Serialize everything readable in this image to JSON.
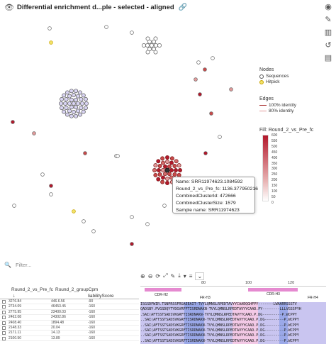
{
  "header": {
    "title": "Differential enrichment d...ple - selected - aligned"
  },
  "icons": {
    "view": "eye-icon",
    "link": "link-icon",
    "rail": [
      "eye-icon",
      "pencil-icon",
      "bar-chart-icon",
      "history-icon",
      "panel-icon"
    ]
  },
  "legend": {
    "nodes_title": "Nodes",
    "nodes": [
      "Sequences",
      "Hitpick"
    ],
    "edges_title": "Edges",
    "edges": [
      "100% identity",
      "80% identity"
    ],
    "fill_title": "Fill: Round_2_vs_Pre_fc",
    "fill_ticks": [
      "600",
      "550",
      "500",
      "450",
      "400",
      "350",
      "300",
      "250",
      "200",
      "150",
      "100",
      "50",
      "0"
    ]
  },
  "tooltip": {
    "name": "Name: SRR11974623.1084592",
    "fc": "Round_2_vs_Pre_fc: 1136.377950216",
    "cluster_id": "CombinedClusterId: 472666",
    "cluster_size": "CombinedClusterSize: 1579",
    "sample": "Sample name: SRR11974623"
  },
  "filter": {
    "placeholder": "Filter..."
  },
  "table": {
    "columns": [
      "Round_2_vs_Pre_fc",
      "Round_2_groupCpm",
      "liabilityScore"
    ],
    "sort_arrow": "↓",
    "rows": [
      [
        "3276.84",
        "446.6.56",
        "-90"
      ],
      [
        "2734.09",
        "46453.45",
        "-160"
      ],
      [
        "2775.95",
        "23400.03",
        "-160"
      ],
      [
        "2462.08",
        "24302.86",
        "-160"
      ],
      [
        "2408.40",
        "1894.48",
        "-160"
      ],
      [
        "2148.33",
        "20.04",
        "-160"
      ],
      [
        "2171.11",
        "14.13",
        "-160"
      ],
      [
        "2100.50",
        "13.89",
        "-160"
      ]
    ]
  },
  "alignment": {
    "ruler": [
      "80",
      "100",
      "120"
    ],
    "regions": [
      "CDR-H2",
      "FR-H3",
      "CDR-H3",
      "FR-H4"
    ],
    "rows": [
      "ISGSDFWIR.TSNPRSSFRGAEEAIT-TVYLQMNSLRPEDTAVYYCAAEQGHFPY-------LWAARRSSSTV",
      "QADSBY.PVGSDQYTYDGVRFFTISRDNAKN-TVYLQMNSLRPEDTAVYYCAAD.PY--------LLLVGSSPYH",
      ".SAI(AFTSSTSADSVKGRFTISRDNAKN-TVYLQMNSLRPEDTAVYYCAAD.P.DG---------P.WCPPY",
      "..SAI(AFTSSTSADSVKGRFTISRDNAKN-TVYLQMNSLRPEDTAVYYCAAD.P.DG---------P.WCPPY",
      "..SAI(AFTSSTSADSVKGRFTISRDNAKN-TVYLQMNSLRPEDTAVYYCAAD.P.DG---------P.WCPPY",
      "..SAI(AFTSSTSADSVKGRFTISRDNAKN-TVYLQMNSLRPEDTAVYYCAAD.P.DG---------P.WCPPY",
      "..SAI(AFTSSTSADSVKGRFTISRDNAKN-TVYLQMNSLRPEDTAVYYCAAD.P.DG---------P.WCPPY",
      "..SAI(AFTSSTSADSVKGRFTISRDNAKN-TVYLQMNSLRPEDTAVYYCAAD.P.DG---------P.WCPPY"
    ]
  },
  "colors": {
    "high": "#b2182b",
    "mid": "#e8a0a0",
    "low": "#ffffff",
    "hitpick": "#f2e36a",
    "cluster_fill": "#d9d4f3",
    "accent": "#a33"
  }
}
